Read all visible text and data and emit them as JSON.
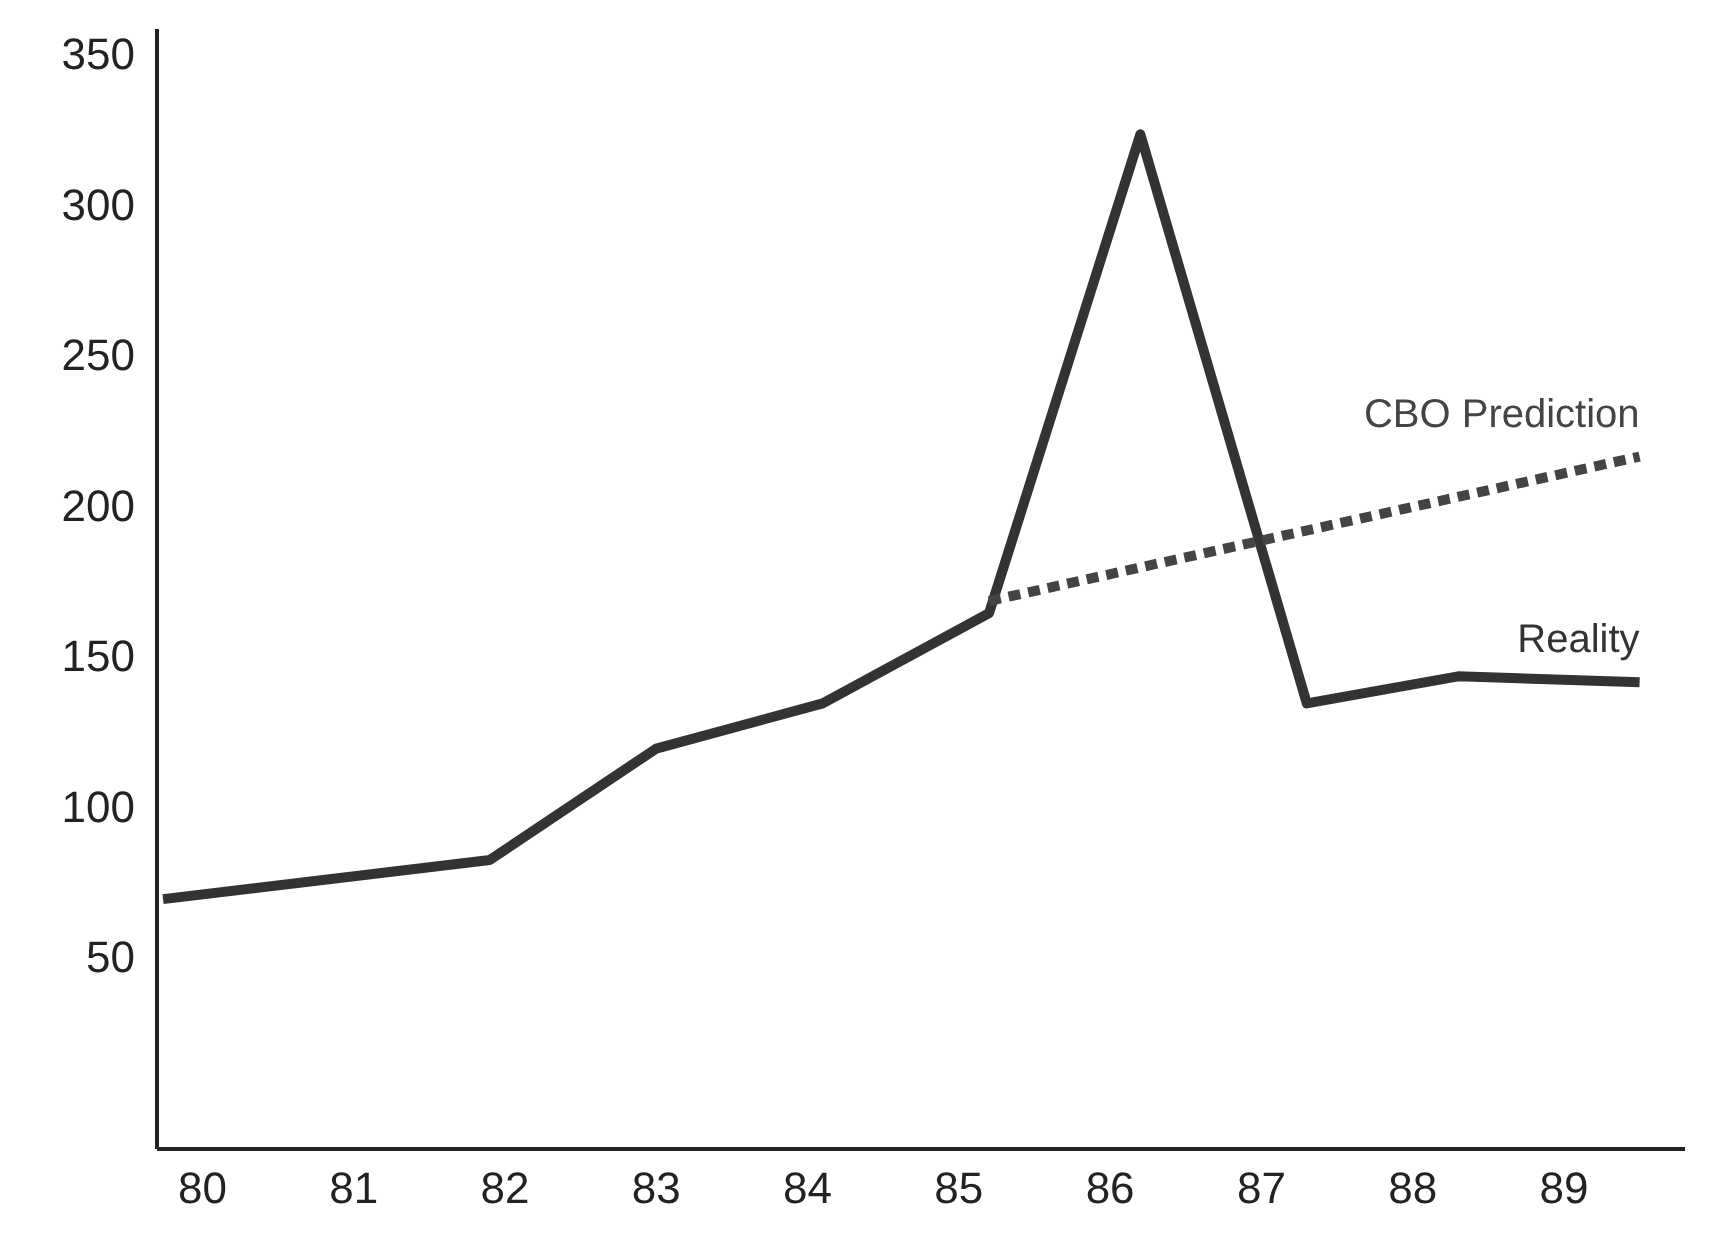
{
  "chart_data": {
    "type": "line",
    "xlim": [
      79.7,
      89.8
    ],
    "ylim": [
      -14,
      358
    ],
    "xticks": [
      80,
      81,
      82,
      83,
      84,
      85,
      86,
      87,
      88,
      89
    ],
    "yticks": [
      50,
      100,
      150,
      200,
      250,
      300,
      350
    ],
    "grid": false,
    "series": [
      {
        "name": "Reality",
        "color": "#333333",
        "line_style": "solid",
        "x": [
          79.74,
          81.9,
          83.0,
          84.1,
          85.2,
          86.2,
          87.3,
          88.3,
          89.5
        ],
        "values": [
          69,
          82,
          119,
          134,
          164,
          323,
          134,
          143,
          141
        ]
      },
      {
        "name": "CBO Prediction",
        "color": "#444444",
        "line_style": "dashed",
        "x": [
          85.2,
          89.5
        ],
        "values": [
          168,
          216
        ]
      }
    ]
  }
}
